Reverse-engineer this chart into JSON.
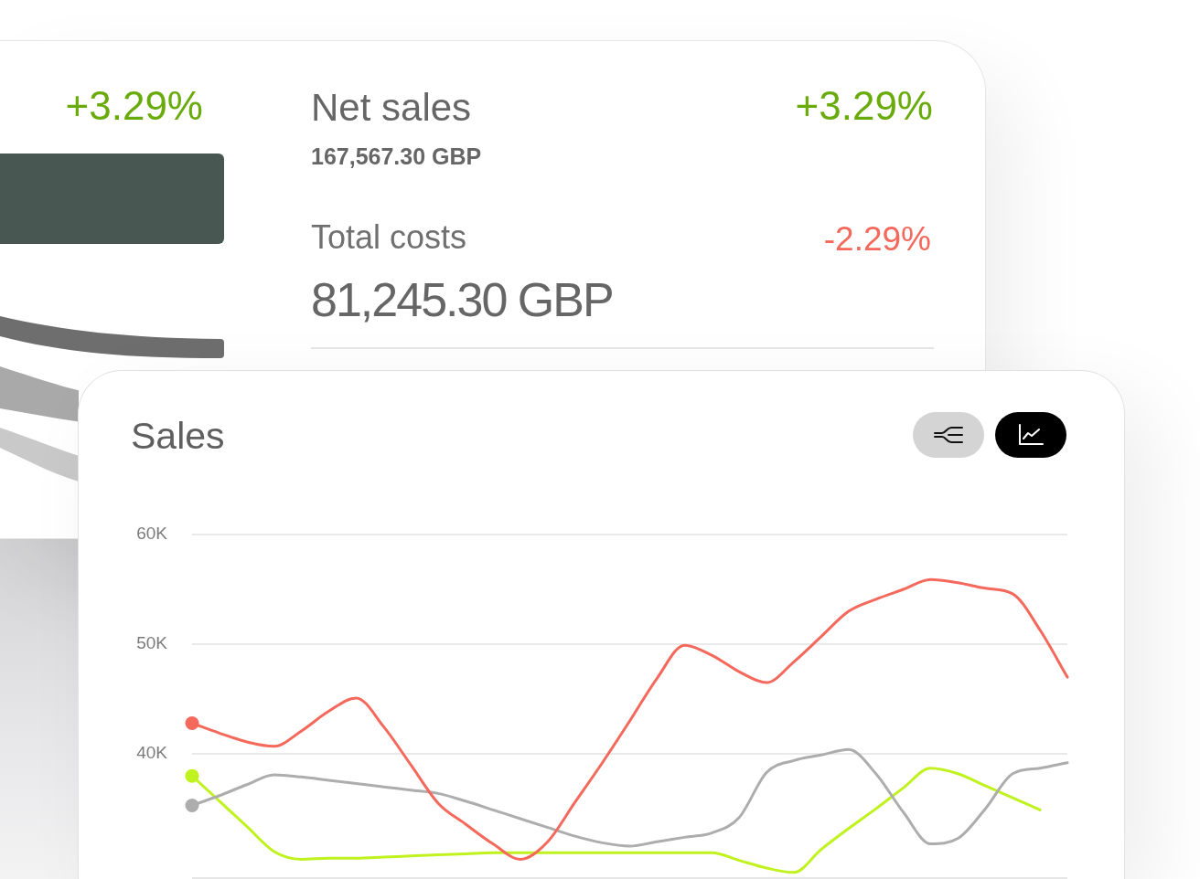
{
  "chart_data": [
    {
      "type": "other",
      "annotations": [
        "+3.29%",
        "Net sales",
        "+3.29%",
        "167,567.30 GBP",
        "Total costs",
        "-2.29%",
        "81,245.30 GBP"
      ]
    },
    {
      "type": "line",
      "title": "Sales",
      "categories": [
        null,
        null,
        null,
        null,
        null,
        null,
        null,
        null,
        null,
        null,
        null,
        null,
        null,
        null,
        null,
        null,
        null,
        null,
        null,
        null,
        null,
        null,
        null,
        null,
        null,
        null,
        null,
        null,
        null,
        null,
        null,
        null,
        null
      ],
      "series": [
        {
          "color": "#f4695b",
          "values": [
            42800,
            41900,
            41100,
            40700,
            42100,
            43900,
            45100,
            42500,
            39000,
            35500,
            33600,
            31800,
            30400,
            32000,
            35600,
            39200,
            43000,
            46900,
            49900,
            49000,
            47500,
            46500,
            48400,
            50700,
            53000,
            54100,
            55000,
            55900,
            55600,
            55100,
            54600,
            51300,
            47000
          ]
        },
        {
          "color": "#adadad",
          "values": [
            35300,
            36200,
            37200,
            38100,
            37900,
            37600,
            37300,
            37000,
            36700,
            36400,
            35700,
            34900,
            34100,
            33300,
            32500,
            31900,
            31600,
            32000,
            32400,
            32800,
            34200,
            38300,
            39400,
            39900,
            40400,
            38200,
            34700,
            31800,
            32300,
            35000,
            38200,
            38700,
            39200
          ]
        },
        {
          "color": "#c0f21e",
          "values": [
            38000,
            35700,
            33400,
            31100,
            30400,
            30500,
            30500,
            30600,
            30700,
            30800,
            30900,
            31000,
            31000,
            31000,
            31000,
            31000,
            31000,
            31000,
            31000,
            31000,
            30300,
            29600,
            29200,
            31300,
            33200,
            35000,
            36900,
            38700,
            38200,
            37100,
            36000,
            34900,
            null
          ]
        },
        {
          "type": "scatter",
          "marker": "circle",
          "color": "#f4695b",
          "values": [
            42800,
            null,
            null,
            null,
            null,
            null,
            null,
            null,
            null,
            null,
            null,
            null,
            null,
            null,
            null,
            null,
            null,
            null,
            null,
            null,
            null,
            null,
            null,
            null,
            null,
            null,
            null,
            null,
            null,
            null,
            null,
            null,
            null
          ]
        },
        {
          "type": "scatter",
          "marker": "circle",
          "color": "#adadad",
          "values": [
            35300,
            null,
            null,
            null,
            null,
            null,
            null,
            null,
            null,
            null,
            null,
            null,
            null,
            null,
            null,
            null,
            null,
            null,
            null,
            null,
            null,
            null,
            null,
            null,
            null,
            null,
            null,
            null,
            null,
            null,
            null,
            null,
            null
          ]
        },
        {
          "type": "scatter",
          "marker": "circle",
          "color": "#c0f21e",
          "values": [
            38000,
            null,
            null,
            null,
            null,
            null,
            null,
            null,
            null,
            null,
            null,
            null,
            null,
            null,
            null,
            null,
            null,
            null,
            null,
            null,
            null,
            null,
            null,
            null,
            null,
            null,
            null,
            null,
            null,
            null,
            null,
            null,
            null
          ]
        }
      ],
      "ylim": [
        28600,
        60000
      ],
      "yticks": [
        {
          "value": 40000,
          "label": "40K"
        },
        {
          "value": 50000,
          "label": "50K"
        },
        {
          "value": 60000,
          "label": "60K"
        }
      ],
      "grid": "y",
      "tick_labels": "y",
      "line_style": "solid"
    }
  ]
}
